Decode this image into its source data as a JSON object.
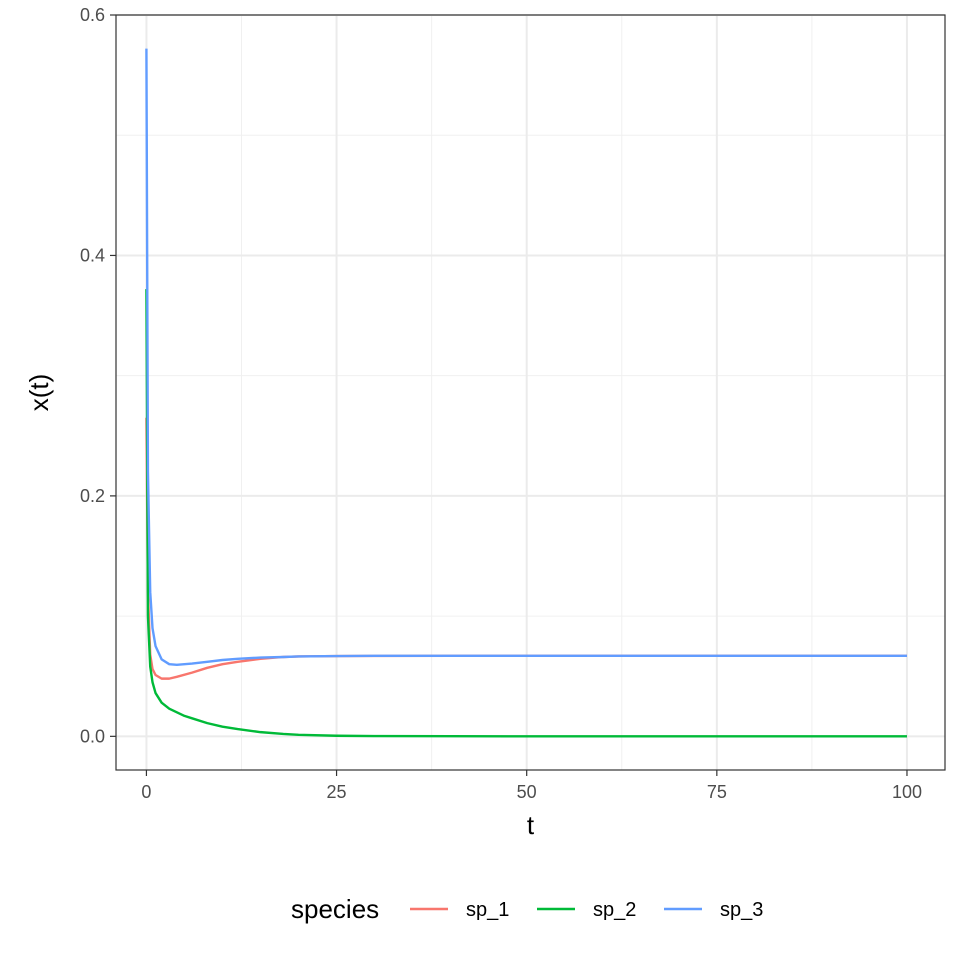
{
  "chart_data": {
    "type": "line",
    "xlabel": "t",
    "ylabel": "x(t)",
    "xlim": [
      -4,
      105
    ],
    "ylim": [
      -0.028,
      0.6
    ],
    "x_ticks": [
      0,
      25,
      50,
      75,
      100
    ],
    "x_tick_labels": [
      "0",
      "25",
      "50",
      "75",
      "100"
    ],
    "y_ticks": [
      0.0,
      0.2,
      0.4,
      0.6
    ],
    "y_tick_labels": [
      "0.0",
      "0.2",
      "0.4",
      "0.6"
    ],
    "grid": true,
    "legend_position": "bottom",
    "legend_title": "species",
    "series": [
      {
        "name": "sp_1",
        "color": "#F8766D",
        "x": [
          0,
          0.2,
          0.5,
          0.8,
          1.2,
          2,
          3,
          4,
          6,
          8,
          10,
          12,
          15,
          18,
          20,
          25,
          30,
          40,
          50,
          60,
          70,
          80,
          90,
          100
        ],
        "y": [
          0.265,
          0.12,
          0.068,
          0.056,
          0.051,
          0.048,
          0.048,
          0.0495,
          0.053,
          0.057,
          0.06,
          0.062,
          0.0645,
          0.066,
          0.0665,
          0.0668,
          0.0669,
          0.067,
          0.067,
          0.067,
          0.067,
          0.067,
          0.067,
          0.067
        ]
      },
      {
        "name": "sp_2",
        "color": "#00BA38",
        "x": [
          0,
          0.2,
          0.5,
          0.8,
          1.2,
          2,
          3,
          4,
          5,
          6,
          8,
          10,
          12,
          15,
          18,
          20,
          25,
          30,
          40,
          50,
          60,
          70,
          80,
          90,
          100
        ],
        "y": [
          0.372,
          0.1,
          0.058,
          0.045,
          0.036,
          0.028,
          0.023,
          0.02,
          0.017,
          0.015,
          0.011,
          0.008,
          0.006,
          0.0035,
          0.002,
          0.0013,
          0.0005,
          0.0002,
          0.0001,
          0.0,
          0.0,
          0.0,
          0.0,
          0.0,
          0.0
        ]
      },
      {
        "name": "sp_3",
        "color": "#619CFF",
        "x": [
          0,
          0.2,
          0.5,
          0.8,
          1.2,
          2,
          3,
          4,
          5,
          6,
          8,
          10,
          12,
          15,
          18,
          20,
          25,
          30,
          40,
          50,
          60,
          70,
          80,
          90,
          100
        ],
        "y": [
          0.572,
          0.22,
          0.12,
          0.09,
          0.075,
          0.064,
          0.06,
          0.0595,
          0.06,
          0.0605,
          0.062,
          0.0635,
          0.0645,
          0.0655,
          0.066,
          0.0665,
          0.0668,
          0.067,
          0.067,
          0.067,
          0.067,
          0.067,
          0.067,
          0.067,
          0.067
        ]
      }
    ]
  }
}
